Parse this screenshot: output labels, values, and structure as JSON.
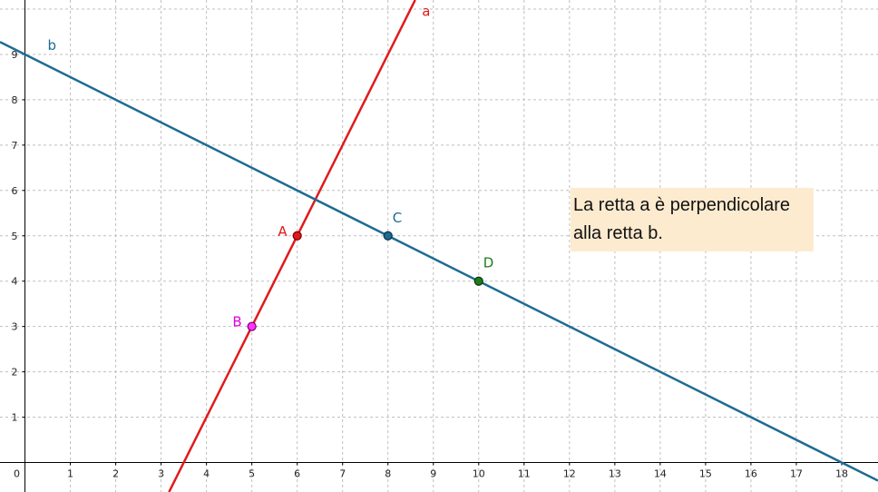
{
  "axes": {
    "x_ticks": [
      "0",
      "1",
      "2",
      "3",
      "4",
      "5",
      "6",
      "7",
      "8",
      "9",
      "10",
      "11",
      "12",
      "13",
      "14",
      "15",
      "16",
      "17",
      "18"
    ],
    "y_ticks": [
      "1",
      "2",
      "3",
      "4",
      "5",
      "6",
      "7",
      "8",
      "9"
    ],
    "x_range": [
      -0.55,
      18.8
    ],
    "y_range": [
      -0.65,
      10.2
    ],
    "grid": true,
    "grid_color": "#bfbfbf",
    "axis_color": "#000000"
  },
  "lines": [
    {
      "name": "a",
      "label": "a",
      "color": "#e01a1a",
      "through": [
        [
          5,
          3
        ],
        [
          6,
          5
        ]
      ],
      "label_at": [
        8.75,
        9.85
      ]
    },
    {
      "name": "b",
      "label": "b",
      "color": "#1d6b94",
      "through": [
        [
          8,
          5
        ],
        [
          10,
          4
        ]
      ],
      "label_at": [
        0.5,
        9.1
      ]
    }
  ],
  "points": [
    {
      "name": "A",
      "label": "A",
      "x": 6,
      "y": 5,
      "fill": "#e01a1a",
      "stroke": "#7a0000",
      "label_color": "#e01a1a",
      "label_pos": "left"
    },
    {
      "name": "B",
      "label": "B",
      "x": 5,
      "y": 3,
      "fill": "#ff33ff",
      "stroke": "#7a007a",
      "label_color": "#e000e0",
      "label_pos": "left"
    },
    {
      "name": "C",
      "label": "C",
      "x": 8,
      "y": 5,
      "fill": "#1d6b94",
      "stroke": "#0b3147",
      "label_color": "#1d6b94",
      "label_pos": "above-right"
    },
    {
      "name": "D",
      "label": "D",
      "x": 10,
      "y": 4,
      "fill": "#1e7b1e",
      "stroke": "#0a3a0a",
      "label_color": "#1e7b1e",
      "label_pos": "above-right"
    }
  ],
  "note": {
    "line1": "La retta a è perpendicolare",
    "line2": "alla retta b.",
    "background": "#fdebd0"
  }
}
